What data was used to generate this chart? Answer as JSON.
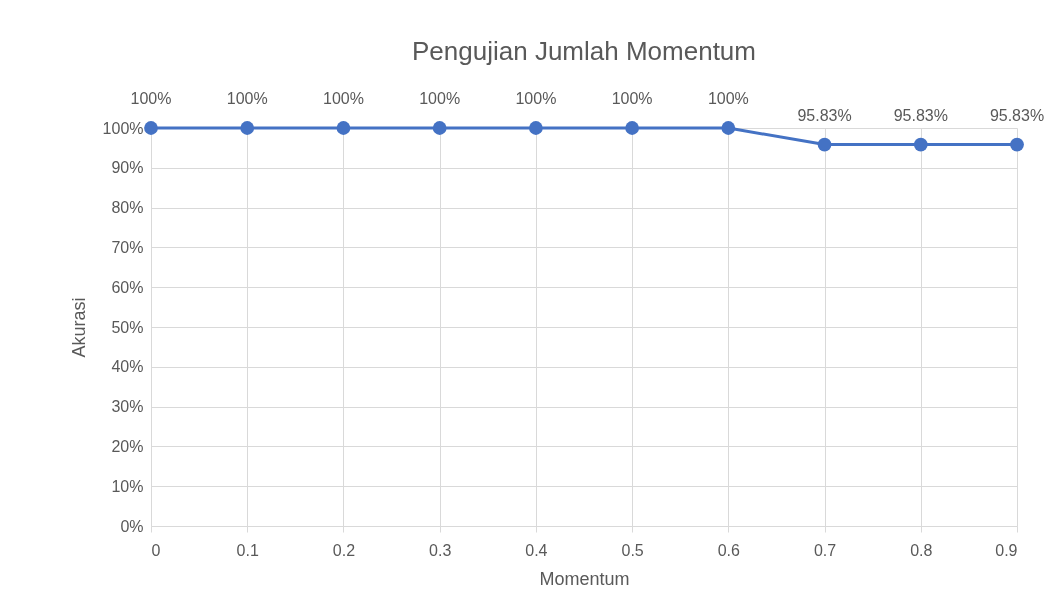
{
  "chart_data": {
    "type": "line",
    "title": "Pengujian Jumlah Momentum",
    "xlabel": "Momentum",
    "ylabel": "Akurasi",
    "x": [
      0,
      0.1,
      0.2,
      0.3,
      0.4,
      0.5,
      0.6,
      0.7,
      0.8,
      0.9
    ],
    "series": [
      {
        "color": "#4472c4",
        "values": [
          100,
          100,
          100,
          100,
          100,
          100,
          100,
          95.83,
          95.83,
          95.83
        ],
        "value_labels": [
          "100%",
          "100%",
          "100%",
          "100%",
          "100%",
          "100%",
          "100%",
          "95.83%",
          "95.83%",
          "95.83%"
        ]
      }
    ],
    "xlim": [
      0,
      0.9
    ],
    "xticks": [
      0,
      0.1,
      0.2,
      0.3,
      0.4,
      0.5,
      0.6,
      0.7,
      0.8,
      0.9
    ],
    "ylim": [
      0,
      100
    ],
    "yticks": [
      {
        "value": 0,
        "label": "0%"
      },
      {
        "value": 10,
        "label": "10%"
      },
      {
        "value": 20,
        "label": "20%"
      },
      {
        "value": 30,
        "label": "30%"
      },
      {
        "value": 40,
        "label": "40%"
      },
      {
        "value": 50,
        "label": "50%"
      },
      {
        "value": 60,
        "label": "60%"
      },
      {
        "value": 70,
        "label": "70%"
      },
      {
        "value": 80,
        "label": "80%"
      },
      {
        "value": 90,
        "label": "90%"
      },
      {
        "value": 100,
        "label": "100%"
      }
    ],
    "grid": true,
    "marker": "circle",
    "line_style": "solid"
  }
}
